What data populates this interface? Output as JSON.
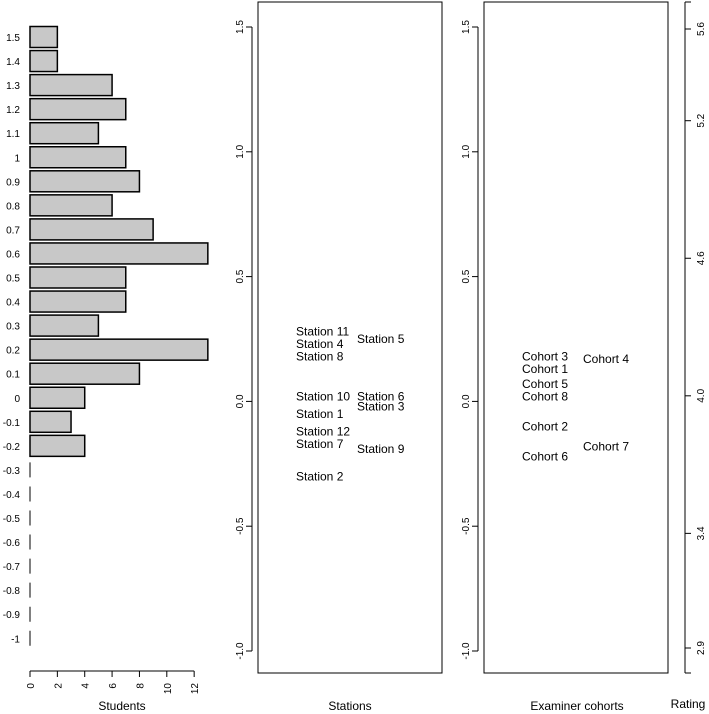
{
  "chart_data": [
    {
      "type": "bar",
      "orientation": "horizontal",
      "xlabel": "Students",
      "ylabel": "",
      "xlim": [
        0,
        13
      ],
      "x_ticks": [
        "0",
        "2",
        "4",
        "6",
        "8",
        "10",
        "12"
      ],
      "categories": [
        "1.5",
        "1.4",
        "1.3",
        "1.2",
        "1.1",
        "1",
        "0.9",
        "0.8",
        "0.7",
        "0.6",
        "0.5",
        "0.4",
        "0.3",
        "0.2",
        "0.1",
        "0",
        "-0.1",
        "-0.2",
        "-0.3",
        "-0.4",
        "-0.5",
        "-0.6",
        "-0.7",
        "-0.8",
        "-0.9",
        "-1"
      ],
      "values": [
        2,
        2,
        6,
        7,
        5,
        7,
        8,
        6,
        9,
        13,
        7,
        7,
        5,
        13,
        8,
        4,
        3,
        4,
        0,
        0,
        0,
        0,
        0,
        0,
        0,
        0
      ],
      "bar_color": "#c8c8c8"
    },
    {
      "type": "scatter",
      "xlabel": "Stations",
      "ylabel": "",
      "ylim": [
        -1.1,
        1.6
      ],
      "y_ticks": [
        "-1.0",
        "-0.5",
        "0.0",
        "0.5",
        "1.0",
        "1.5"
      ],
      "points": [
        {
          "label": "Station 11",
          "column": 1,
          "y": 0.28
        },
        {
          "label": "Station 4",
          "column": 1,
          "y": 0.23
        },
        {
          "label": "Station 8",
          "column": 1,
          "y": 0.18
        },
        {
          "label": "Station 10",
          "column": 1,
          "y": 0.02
        },
        {
          "label": "Station 1",
          "column": 1,
          "y": -0.05
        },
        {
          "label": "Station 12",
          "column": 1,
          "y": -0.12
        },
        {
          "label": "Station 7",
          "column": 1,
          "y": -0.17
        },
        {
          "label": "Station 2",
          "column": 1,
          "y": -0.3
        },
        {
          "label": "Station 5",
          "column": 2,
          "y": 0.25
        },
        {
          "label": "Station 6",
          "column": 2,
          "y": 0.02
        },
        {
          "label": "Station 3",
          "column": 2,
          "y": -0.02
        },
        {
          "label": "Station 9",
          "column": 2,
          "y": -0.19
        }
      ]
    },
    {
      "type": "scatter",
      "xlabel": "Examiner cohorts",
      "ylabel": "",
      "ylim": [
        -1.1,
        1.6
      ],
      "y_ticks": [
        "-1.0",
        "-0.5",
        "0.0",
        "0.5",
        "1.0",
        "1.5"
      ],
      "points": [
        {
          "label": "Cohort 3",
          "column": 1,
          "y": 0.18
        },
        {
          "label": "Cohort 1",
          "column": 1,
          "y": 0.13
        },
        {
          "label": "Cohort 5",
          "column": 1,
          "y": 0.07
        },
        {
          "label": "Cohort 8",
          "column": 1,
          "y": 0.02
        },
        {
          "label": "Cohort 2",
          "column": 1,
          "y": -0.1
        },
        {
          "label": "Cohort 6",
          "column": 1,
          "y": -0.22
        },
        {
          "label": "Cohort 4",
          "column": 2,
          "y": 0.17
        },
        {
          "label": "Cohort 7",
          "column": 2,
          "y": -0.18
        }
      ]
    },
    {
      "type": "axis",
      "xlabel": "Rating",
      "y_ticks": [
        "2.9",
        "3.4",
        "4.0",
        "4.6",
        "5.2",
        "5.6"
      ],
      "tick_values": [
        2.9,
        3.4,
        4.0,
        4.6,
        5.2,
        5.6
      ],
      "ylim": [
        2.8,
        5.75
      ]
    }
  ]
}
